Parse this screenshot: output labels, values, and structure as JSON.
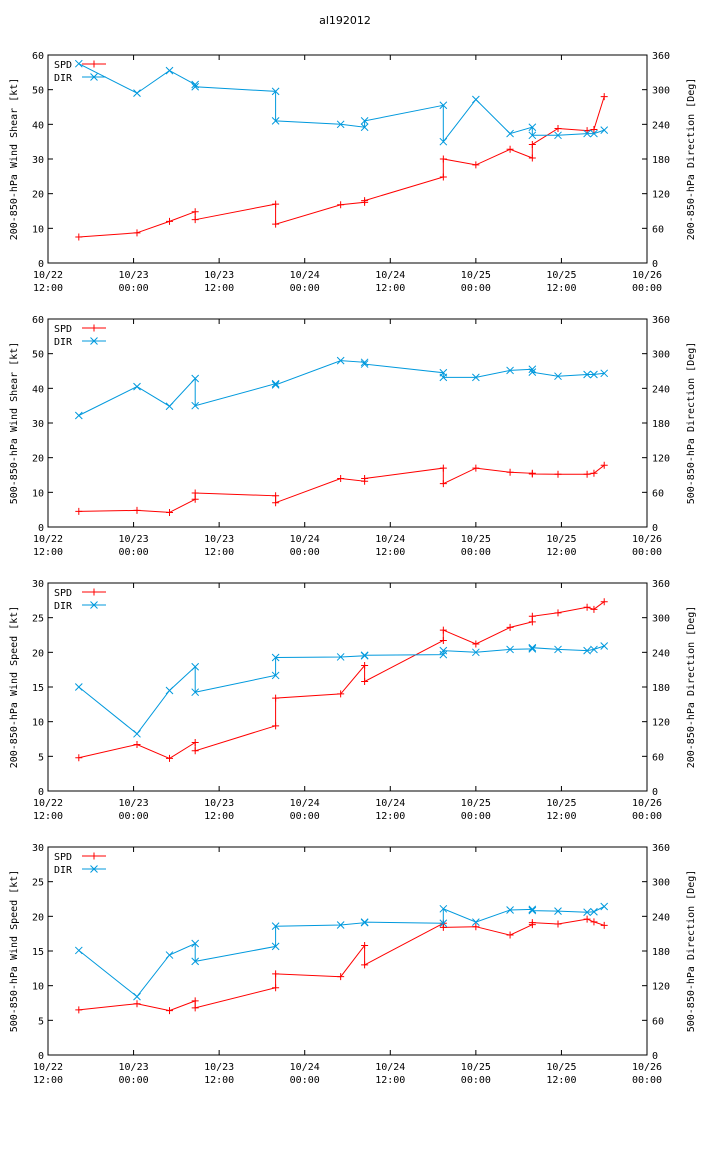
{
  "figure_title": "al192012",
  "colors": {
    "title": "#0000ff",
    "spd": "#ff0000",
    "dir": "#0099dd",
    "axis": "#000000"
  },
  "chart_data": [
    {
      "type": "line",
      "ylabel_left": "200-850-hPa Wind Shear [kt]",
      "ylabel_right": "200-850-hPa Direction [Deg]",
      "xlim": [
        -0.5,
        3.0
      ],
      "ylim_left": [
        0,
        60
      ],
      "yticks_left": [
        0,
        10,
        20,
        30,
        40,
        50,
        60
      ],
      "ylim_right": [
        0,
        360
      ],
      "yticks_right": [
        0,
        60,
        120,
        180,
        240,
        300,
        360
      ],
      "xticks": [
        {
          "v": -0.5,
          "l1": "10/22",
          "l2": "12:00"
        },
        {
          "v": 0,
          "l1": "10/23",
          "l2": "00:00"
        },
        {
          "v": 0.5,
          "l1": "10/23",
          "l2": "12:00"
        },
        {
          "v": 1,
          "l1": "10/24",
          "l2": "00:00"
        },
        {
          "v": 1.5,
          "l1": "10/24",
          "l2": "12:00"
        },
        {
          "v": 2,
          "l1": "10/25",
          "l2": "00:00"
        },
        {
          "v": 2.5,
          "l1": "10/25",
          "l2": "12:00"
        },
        {
          "v": 3,
          "l1": "10/26",
          "l2": "00:00"
        }
      ],
      "legend": [
        "SPD",
        "DIR"
      ],
      "series": [
        {
          "name": "SPD",
          "axis": "left",
          "x": [
            -0.32,
            0.02,
            0.21,
            0.36,
            0.36,
            0.83,
            0.83,
            1.21,
            1.35,
            1.35,
            1.81,
            1.81,
            2.0,
            2.2,
            2.33,
            2.33,
            2.48,
            2.65,
            2.69,
            2.75
          ],
          "y": [
            7.5,
            8.7,
            12.0,
            14.8,
            12.5,
            17.0,
            11.2,
            16.8,
            17.5,
            18.0,
            24.8,
            30.0,
            28.3,
            32.8,
            30.3,
            34.2,
            38.8,
            38.2,
            38.5,
            48.0
          ]
        },
        {
          "name": "DIR",
          "axis": "right",
          "x": [
            -0.32,
            0.02,
            0.21,
            0.36,
            0.36,
            0.83,
            0.83,
            1.21,
            1.35,
            1.35,
            1.81,
            1.81,
            2.0,
            2.2,
            2.33,
            2.33,
            2.48,
            2.65,
            2.69,
            2.75
          ],
          "y": [
            345,
            294,
            333,
            309,
            305,
            297,
            246,
            240,
            235,
            246,
            273,
            210,
            283,
            224,
            235,
            221,
            221,
            224,
            224,
            230
          ]
        }
      ]
    },
    {
      "type": "line",
      "ylabel_left": "500-850-hPa Wind Shear [kt]",
      "ylabel_right": "500-850-hPa Direction [Deg]",
      "xlim": [
        -0.5,
        3.0
      ],
      "ylim_left": [
        0,
        60
      ],
      "yticks_left": [
        0,
        10,
        20,
        30,
        40,
        50,
        60
      ],
      "ylim_right": [
        0,
        360
      ],
      "yticks_right": [
        0,
        60,
        120,
        180,
        240,
        300,
        360
      ],
      "xticks": [
        {
          "v": -0.5,
          "l1": "10/22",
          "l2": "12:00"
        },
        {
          "v": 0,
          "l1": "10/23",
          "l2": "00:00"
        },
        {
          "v": 0.5,
          "l1": "10/23",
          "l2": "12:00"
        },
        {
          "v": 1,
          "l1": "10/24",
          "l2": "00:00"
        },
        {
          "v": 1.5,
          "l1": "10/24",
          "l2": "12:00"
        },
        {
          "v": 2,
          "l1": "10/25",
          "l2": "00:00"
        },
        {
          "v": 2.5,
          "l1": "10/25",
          "l2": "12:00"
        },
        {
          "v": 3,
          "l1": "10/26",
          "l2": "00:00"
        }
      ],
      "legend": [
        "SPD",
        "DIR"
      ],
      "series": [
        {
          "name": "SPD",
          "axis": "left",
          "x": [
            -0.32,
            0.02,
            0.21,
            0.36,
            0.36,
            0.83,
            0.83,
            1.21,
            1.35,
            1.35,
            1.81,
            1.81,
            2.0,
            2.2,
            2.33,
            2.33,
            2.48,
            2.65,
            2.69,
            2.75
          ],
          "y": [
            4.5,
            4.8,
            4.2,
            8.0,
            9.8,
            9.0,
            7.0,
            14.0,
            13.2,
            14.0,
            17.0,
            12.5,
            17.0,
            15.8,
            15.5,
            15.3,
            15.2,
            15.2,
            15.5,
            17.8
          ]
        },
        {
          "name": "DIR",
          "axis": "right",
          "x": [
            -0.32,
            0.02,
            0.21,
            0.36,
            0.36,
            0.83,
            0.83,
            1.21,
            1.35,
            1.35,
            1.81,
            1.81,
            2.0,
            2.2,
            2.33,
            2.33,
            2.48,
            2.65,
            2.69,
            2.75
          ],
          "y": [
            193,
            243,
            209,
            257,
            210,
            248,
            246,
            288,
            285,
            282,
            267,
            259,
            259,
            271,
            273,
            268,
            261,
            264,
            264,
            266
          ]
        }
      ]
    },
    {
      "type": "line",
      "ylabel_left": "200-850-hPa Wind Speed [kt]",
      "ylabel_right": "200-850-hPa Direction [Deg]",
      "xlim": [
        -0.5,
        3.0
      ],
      "ylim_left": [
        0,
        30
      ],
      "yticks_left": [
        0,
        5,
        10,
        15,
        20,
        25,
        30
      ],
      "ylim_right": [
        0,
        360
      ],
      "yticks_right": [
        0,
        60,
        120,
        180,
        240,
        300,
        360
      ],
      "xticks": [
        {
          "v": -0.5,
          "l1": "10/22",
          "l2": "12:00"
        },
        {
          "v": 0,
          "l1": "10/23",
          "l2": "00:00"
        },
        {
          "v": 0.5,
          "l1": "10/23",
          "l2": "12:00"
        },
        {
          "v": 1,
          "l1": "10/24",
          "l2": "00:00"
        },
        {
          "v": 1.5,
          "l1": "10/24",
          "l2": "12:00"
        },
        {
          "v": 2,
          "l1": "10/25",
          "l2": "00:00"
        },
        {
          "v": 2.5,
          "l1": "10/25",
          "l2": "12:00"
        },
        {
          "v": 3,
          "l1": "10/26",
          "l2": "00:00"
        }
      ],
      "legend": [
        "SPD",
        "DIR"
      ],
      "series": [
        {
          "name": "SPD",
          "axis": "left",
          "x": [
            -0.32,
            0.02,
            0.21,
            0.36,
            0.36,
            0.83,
            0.83,
            1.21,
            1.35,
            1.35,
            1.81,
            1.81,
            2.0,
            2.2,
            2.33,
            2.33,
            2.48,
            2.65,
            2.69,
            2.75
          ],
          "y": [
            4.8,
            6.7,
            4.7,
            7.0,
            5.8,
            9.4,
            13.4,
            14.0,
            18.1,
            15.8,
            21.7,
            23.2,
            21.2,
            23.6,
            24.4,
            25.2,
            25.7,
            26.5,
            26.2,
            27.3
          ]
        },
        {
          "name": "DIR",
          "axis": "right",
          "x": [
            -0.32,
            0.02,
            0.21,
            0.36,
            0.36,
            0.83,
            0.83,
            1.21,
            1.35,
            1.35,
            1.81,
            1.81,
            2.0,
            2.2,
            2.33,
            2.33,
            2.48,
            2.65,
            2.69,
            2.75
          ],
          "y": [
            180,
            99,
            174,
            215,
            171,
            200,
            231,
            232,
            234,
            235,
            236,
            243,
            240,
            245,
            246,
            248,
            245,
            243,
            245,
            251
          ]
        }
      ]
    },
    {
      "type": "line",
      "ylabel_left": "500-850-hPa Wind Speed [kt]",
      "ylabel_right": "500-850-hPa Direction [Deg]",
      "xlim": [
        -0.5,
        3.0
      ],
      "ylim_left": [
        0,
        30
      ],
      "yticks_left": [
        0,
        5,
        10,
        15,
        20,
        25,
        30
      ],
      "ylim_right": [
        0,
        360
      ],
      "yticks_right": [
        0,
        60,
        120,
        180,
        240,
        300,
        360
      ],
      "xticks": [
        {
          "v": -0.5,
          "l1": "10/22",
          "l2": "12:00"
        },
        {
          "v": 0,
          "l1": "10/23",
          "l2": "00:00"
        },
        {
          "v": 0.5,
          "l1": "10/23",
          "l2": "12:00"
        },
        {
          "v": 1,
          "l1": "10/24",
          "l2": "00:00"
        },
        {
          "v": 1.5,
          "l1": "10/24",
          "l2": "12:00"
        },
        {
          "v": 2,
          "l1": "10/25",
          "l2": "00:00"
        },
        {
          "v": 2.5,
          "l1": "10/25",
          "l2": "12:00"
        },
        {
          "v": 3,
          "l1": "10/26",
          "l2": "00:00"
        }
      ],
      "legend": [
        "SPD",
        "DIR"
      ],
      "series": [
        {
          "name": "SPD",
          "axis": "left",
          "x": [
            -0.32,
            0.02,
            0.21,
            0.36,
            0.36,
            0.83,
            0.83,
            1.21,
            1.35,
            1.35,
            1.81,
            1.81,
            2.0,
            2.2,
            2.33,
            2.33,
            2.48,
            2.65,
            2.69,
            2.75
          ],
          "y": [
            6.5,
            7.4,
            6.4,
            7.8,
            6.8,
            9.7,
            11.7,
            11.3,
            15.8,
            13.0,
            19.0,
            18.4,
            18.5,
            17.3,
            18.8,
            19.1,
            18.9,
            19.6,
            19.2,
            18.7
          ]
        },
        {
          "name": "DIR",
          "axis": "right",
          "x": [
            -0.32,
            0.02,
            0.21,
            0.36,
            0.36,
            0.83,
            0.83,
            1.21,
            1.35,
            1.35,
            1.81,
            1.81,
            2.0,
            2.2,
            2.33,
            2.33,
            2.48,
            2.65,
            2.69,
            2.75
          ],
          "y": [
            181,
            101,
            173,
            193,
            162,
            188,
            223,
            225,
            229,
            230,
            228,
            253,
            230,
            251,
            252,
            250,
            249,
            247,
            248,
            257
          ]
        }
      ]
    }
  ]
}
